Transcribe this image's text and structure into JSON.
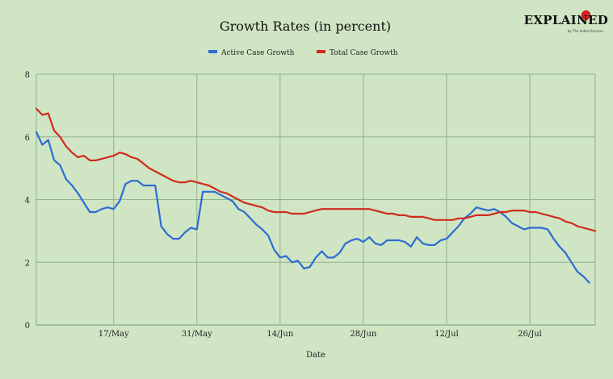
{
  "logo": {
    "text": "EXPLAINED",
    "subtext": "by The Indian Express",
    "icon": "location-pin-icon"
  },
  "colors": {
    "active": "#2e6cd1",
    "total": "#d12a1e",
    "grid": "#8fb28f",
    "background": "#cfe5c4"
  },
  "chart_data": {
    "type": "line",
    "title": "Growth Rates (in percent)",
    "xlabel": "Date",
    "ylabel": "",
    "ylim": [
      0,
      8
    ],
    "yticks": [
      0,
      2,
      4,
      6,
      8
    ],
    "xlim": [
      "2020-05-04",
      "2020-08-06"
    ],
    "xticks": [
      {
        "date": "2020-05-17",
        "label": "17/May"
      },
      {
        "date": "2020-05-31",
        "label": "31/May"
      },
      {
        "date": "2020-06-14",
        "label": "14/Jun"
      },
      {
        "date": "2020-06-28",
        "label": "28/Jun"
      },
      {
        "date": "2020-07-12",
        "label": "12/Jul"
      },
      {
        "date": "2020-07-26",
        "label": "26/Jul"
      }
    ],
    "grid": true,
    "legend": "top-center",
    "series": [
      {
        "name": "Active Case Growth",
        "color": "#2e6cd1",
        "points": [
          [
            "2020-05-04",
            6.15
          ],
          [
            "2020-05-05",
            5.75
          ],
          [
            "2020-05-06",
            5.9
          ],
          [
            "2020-05-07",
            5.25
          ],
          [
            "2020-05-08",
            5.1
          ],
          [
            "2020-05-09",
            4.65
          ],
          [
            "2020-05-10",
            4.45
          ],
          [
            "2020-05-11",
            4.2
          ],
          [
            "2020-05-12",
            3.9
          ],
          [
            "2020-05-13",
            3.6
          ],
          [
            "2020-05-14",
            3.6
          ],
          [
            "2020-05-15",
            3.7
          ],
          [
            "2020-05-16",
            3.75
          ],
          [
            "2020-05-17",
            3.7
          ],
          [
            "2020-05-18",
            3.95
          ],
          [
            "2020-05-19",
            4.5
          ],
          [
            "2020-05-20",
            4.6
          ],
          [
            "2020-05-21",
            4.6
          ],
          [
            "2020-05-22",
            4.45
          ],
          [
            "2020-05-23",
            4.45
          ],
          [
            "2020-05-24",
            4.45
          ],
          [
            "2020-05-25",
            3.15
          ],
          [
            "2020-05-26",
            2.9
          ],
          [
            "2020-05-27",
            2.75
          ],
          [
            "2020-05-28",
            2.75
          ],
          [
            "2020-05-29",
            2.95
          ],
          [
            "2020-05-30",
            3.1
          ],
          [
            "2020-05-31",
            3.05
          ],
          [
            "2020-06-01",
            4.25
          ],
          [
            "2020-06-02",
            4.25
          ],
          [
            "2020-06-03",
            4.25
          ],
          [
            "2020-06-04",
            4.15
          ],
          [
            "2020-06-05",
            4.05
          ],
          [
            "2020-06-06",
            3.95
          ],
          [
            "2020-06-07",
            3.7
          ],
          [
            "2020-06-08",
            3.6
          ],
          [
            "2020-06-09",
            3.4
          ],
          [
            "2020-06-10",
            3.2
          ],
          [
            "2020-06-11",
            3.05
          ],
          [
            "2020-06-12",
            2.85
          ],
          [
            "2020-06-13",
            2.4
          ],
          [
            "2020-06-14",
            2.15
          ],
          [
            "2020-06-15",
            2.2
          ],
          [
            "2020-06-16",
            2.0
          ],
          [
            "2020-06-17",
            2.05
          ],
          [
            "2020-06-18",
            1.8
          ],
          [
            "2020-06-19",
            1.85
          ],
          [
            "2020-06-20",
            2.15
          ],
          [
            "2020-06-21",
            2.35
          ],
          [
            "2020-06-22",
            2.15
          ],
          [
            "2020-06-23",
            2.15
          ],
          [
            "2020-06-24",
            2.3
          ],
          [
            "2020-06-25",
            2.6
          ],
          [
            "2020-06-26",
            2.7
          ],
          [
            "2020-06-27",
            2.75
          ],
          [
            "2020-06-28",
            2.65
          ],
          [
            "2020-06-29",
            2.8
          ],
          [
            "2020-06-30",
            2.6
          ],
          [
            "2020-07-01",
            2.55
          ],
          [
            "2020-07-02",
            2.7
          ],
          [
            "2020-07-03",
            2.7
          ],
          [
            "2020-07-04",
            2.7
          ],
          [
            "2020-07-05",
            2.65
          ],
          [
            "2020-07-06",
            2.5
          ],
          [
            "2020-07-07",
            2.8
          ],
          [
            "2020-07-08",
            2.6
          ],
          [
            "2020-07-09",
            2.55
          ],
          [
            "2020-07-10",
            2.55
          ],
          [
            "2020-07-11",
            2.7
          ],
          [
            "2020-07-12",
            2.75
          ],
          [
            "2020-07-13",
            2.95
          ],
          [
            "2020-07-14",
            3.15
          ],
          [
            "2020-07-15",
            3.4
          ],
          [
            "2020-07-16",
            3.55
          ],
          [
            "2020-07-17",
            3.75
          ],
          [
            "2020-07-18",
            3.7
          ],
          [
            "2020-07-19",
            3.65
          ],
          [
            "2020-07-20",
            3.7
          ],
          [
            "2020-07-21",
            3.6
          ],
          [
            "2020-07-22",
            3.45
          ],
          [
            "2020-07-23",
            3.25
          ],
          [
            "2020-07-24",
            3.15
          ],
          [
            "2020-07-25",
            3.05
          ],
          [
            "2020-07-26",
            3.1
          ],
          [
            "2020-07-27",
            3.1
          ],
          [
            "2020-07-28",
            3.1
          ],
          [
            "2020-07-29",
            3.05
          ],
          [
            "2020-07-30",
            2.75
          ],
          [
            "2020-07-31",
            2.5
          ],
          [
            "2020-08-01",
            2.3
          ],
          [
            "2020-08-02",
            2.0
          ],
          [
            "2020-08-03",
            1.7
          ],
          [
            "2020-08-04",
            1.55
          ],
          [
            "2020-08-05",
            1.35
          ]
        ]
      },
      {
        "name": "Total Case Growth",
        "color": "#d12a1e",
        "points": [
          [
            "2020-05-04",
            6.9
          ],
          [
            "2020-05-05",
            6.7
          ],
          [
            "2020-05-06",
            6.75
          ],
          [
            "2020-05-07",
            6.2
          ],
          [
            "2020-05-08",
            6.0
          ],
          [
            "2020-05-09",
            5.7
          ],
          [
            "2020-05-10",
            5.5
          ],
          [
            "2020-05-11",
            5.35
          ],
          [
            "2020-05-12",
            5.4
          ],
          [
            "2020-05-13",
            5.25
          ],
          [
            "2020-05-14",
            5.25
          ],
          [
            "2020-05-15",
            5.3
          ],
          [
            "2020-05-16",
            5.35
          ],
          [
            "2020-05-17",
            5.4
          ],
          [
            "2020-05-18",
            5.5
          ],
          [
            "2020-05-19",
            5.45
          ],
          [
            "2020-05-20",
            5.35
          ],
          [
            "2020-05-21",
            5.3
          ],
          [
            "2020-05-22",
            5.15
          ],
          [
            "2020-05-23",
            5.0
          ],
          [
            "2020-05-24",
            4.9
          ],
          [
            "2020-05-25",
            4.8
          ],
          [
            "2020-05-26",
            4.7
          ],
          [
            "2020-05-27",
            4.6
          ],
          [
            "2020-05-28",
            4.55
          ],
          [
            "2020-05-29",
            4.55
          ],
          [
            "2020-05-30",
            4.6
          ],
          [
            "2020-05-31",
            4.55
          ],
          [
            "2020-06-01",
            4.5
          ],
          [
            "2020-06-02",
            4.45
          ],
          [
            "2020-06-03",
            4.35
          ],
          [
            "2020-06-04",
            4.25
          ],
          [
            "2020-06-05",
            4.2
          ],
          [
            "2020-06-06",
            4.1
          ],
          [
            "2020-06-07",
            4.0
          ],
          [
            "2020-06-08",
            3.9
          ],
          [
            "2020-06-09",
            3.85
          ],
          [
            "2020-06-10",
            3.8
          ],
          [
            "2020-06-11",
            3.75
          ],
          [
            "2020-06-12",
            3.65
          ],
          [
            "2020-06-13",
            3.6
          ],
          [
            "2020-06-14",
            3.6
          ],
          [
            "2020-06-15",
            3.6
          ],
          [
            "2020-06-16",
            3.55
          ],
          [
            "2020-06-17",
            3.55
          ],
          [
            "2020-06-18",
            3.55
          ],
          [
            "2020-06-19",
            3.6
          ],
          [
            "2020-06-20",
            3.65
          ],
          [
            "2020-06-21",
            3.7
          ],
          [
            "2020-06-22",
            3.7
          ],
          [
            "2020-06-23",
            3.7
          ],
          [
            "2020-06-24",
            3.7
          ],
          [
            "2020-06-25",
            3.7
          ],
          [
            "2020-06-26",
            3.7
          ],
          [
            "2020-06-27",
            3.7
          ],
          [
            "2020-06-28",
            3.7
          ],
          [
            "2020-06-29",
            3.7
          ],
          [
            "2020-06-30",
            3.65
          ],
          [
            "2020-07-01",
            3.6
          ],
          [
            "2020-07-02",
            3.55
          ],
          [
            "2020-07-03",
            3.55
          ],
          [
            "2020-07-04",
            3.5
          ],
          [
            "2020-07-05",
            3.5
          ],
          [
            "2020-07-06",
            3.45
          ],
          [
            "2020-07-07",
            3.45
          ],
          [
            "2020-07-08",
            3.45
          ],
          [
            "2020-07-09",
            3.4
          ],
          [
            "2020-07-10",
            3.35
          ],
          [
            "2020-07-11",
            3.35
          ],
          [
            "2020-07-12",
            3.35
          ],
          [
            "2020-07-13",
            3.35
          ],
          [
            "2020-07-14",
            3.4
          ],
          [
            "2020-07-15",
            3.4
          ],
          [
            "2020-07-16",
            3.45
          ],
          [
            "2020-07-17",
            3.5
          ],
          [
            "2020-07-18",
            3.5
          ],
          [
            "2020-07-19",
            3.5
          ],
          [
            "2020-07-20",
            3.55
          ],
          [
            "2020-07-21",
            3.6
          ],
          [
            "2020-07-22",
            3.6
          ],
          [
            "2020-07-23",
            3.65
          ],
          [
            "2020-07-24",
            3.65
          ],
          [
            "2020-07-25",
            3.65
          ],
          [
            "2020-07-26",
            3.6
          ],
          [
            "2020-07-27",
            3.6
          ],
          [
            "2020-07-28",
            3.55
          ],
          [
            "2020-07-29",
            3.5
          ],
          [
            "2020-07-30",
            3.45
          ],
          [
            "2020-07-31",
            3.4
          ],
          [
            "2020-08-01",
            3.3
          ],
          [
            "2020-08-02",
            3.25
          ],
          [
            "2020-08-03",
            3.15
          ],
          [
            "2020-08-04",
            3.1
          ],
          [
            "2020-08-05",
            3.05
          ],
          [
            "2020-08-06",
            3.0
          ]
        ]
      }
    ]
  }
}
